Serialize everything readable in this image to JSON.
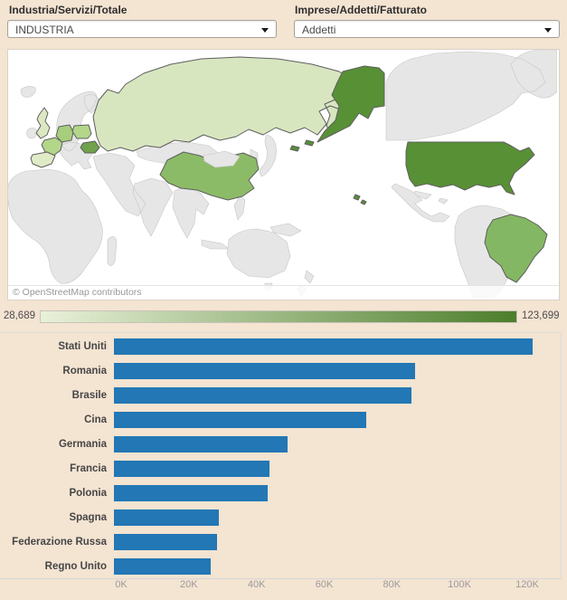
{
  "filters": {
    "dimension": {
      "label": "Industria/Servizi/Totale",
      "value": "INDUSTRIA"
    },
    "measure": {
      "label": "Imprese/Addetti/Fatturato",
      "value": "Addetti"
    }
  },
  "map": {
    "attribution": "© OpenStreetMap contributors",
    "ocean_color": "#ffffff",
    "neutral_land_color": "#e6e6e6",
    "countries": [
      {
        "id": "stati-uniti",
        "name": "Stati Uniti",
        "color": "#589036"
      },
      {
        "id": "romania",
        "name": "Romania",
        "color": "#6fa24a"
      },
      {
        "id": "brasile",
        "name": "Brasile",
        "color": "#84b763"
      },
      {
        "id": "cina",
        "name": "Cina",
        "color": "#8cbb68"
      },
      {
        "id": "germania",
        "name": "Germania",
        "color": "#a6ce7c"
      },
      {
        "id": "francia",
        "name": "Francia",
        "color": "#b3d689"
      },
      {
        "id": "polonia",
        "name": "Polonia",
        "color": "#b3d689"
      },
      {
        "id": "spagna",
        "name": "Spagna",
        "color": "#dfeac6"
      },
      {
        "id": "federazione-russa",
        "name": "Federazione Russa",
        "color": "#d8e6c0"
      },
      {
        "id": "regno-unito",
        "name": "Regno Unito",
        "color": "#dce8c2"
      }
    ]
  },
  "legend": {
    "min_label": "28,689",
    "max_label": "123,699",
    "gradient_from": "#e9f1d9",
    "gradient_to": "#4c7e2b"
  },
  "chart_data": {
    "type": "bar",
    "orientation": "horizontal",
    "title": "",
    "xlabel": "",
    "ylabel": "",
    "categories": [
      "Stati Uniti",
      "Romania",
      "Brasile",
      "Cina",
      "Germania",
      "Francia",
      "Polonia",
      "Spagna",
      "Federazione Russa",
      "Regno Unito"
    ],
    "values": [
      123699,
      88900,
      88000,
      74500,
      51200,
      46000,
      45400,
      30900,
      30500,
      28689
    ],
    "x_ticks": [
      {
        "label": "0K",
        "value": 0
      },
      {
        "label": "20K",
        "value": 20000
      },
      {
        "label": "40K",
        "value": 40000
      },
      {
        "label": "60K",
        "value": 60000
      },
      {
        "label": "80K",
        "value": 80000
      },
      {
        "label": "100K",
        "value": 100000
      },
      {
        "label": "120K",
        "value": 120000
      }
    ],
    "xlim": [
      0,
      132000
    ],
    "bar_color": "#2277b4",
    "grid": false,
    "legend_position": "none"
  }
}
